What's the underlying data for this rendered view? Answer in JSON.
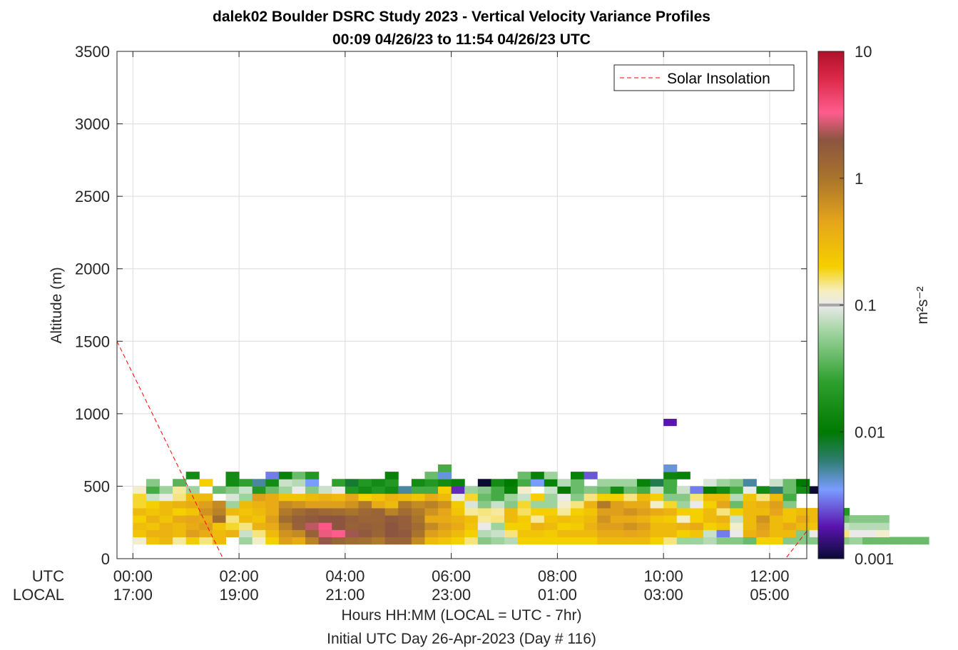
{
  "chart_data": {
    "type": "heatmap",
    "title": "dalek02 Boulder DSRC Study 2023 - Vertical Velocity Variance Profiles",
    "subtitle": "00:09 04/26/23 to 11:54 04/26/23  UTC",
    "ylabel": "Altitude (m)",
    "xlabel": "Hours HH:MM  (LOCAL = UTC - 7hr)",
    "footer": "Initial UTC Day 26-Apr-2023 (Day # 116)",
    "row_labels": [
      "UTC",
      "LOCAL"
    ],
    "xlim": [
      -0.3,
      12.7
    ],
    "ylim": [
      0,
      3500
    ],
    "grid": true,
    "x_ticks": [
      {
        "value": 0,
        "utc": "00:00",
        "local": "17:00"
      },
      {
        "value": 2,
        "utc": "02:00",
        "local": "19:00"
      },
      {
        "value": 4,
        "utc": "04:00",
        "local": "21:00"
      },
      {
        "value": 6,
        "utc": "06:00",
        "local": "23:00"
      },
      {
        "value": 8,
        "utc": "08:00",
        "local": "01:00"
      },
      {
        "value": 10,
        "utc": "10:00",
        "local": "03:00"
      },
      {
        "value": 12,
        "utc": "12:00",
        "local": "05:00"
      }
    ],
    "y_ticks": [
      0,
      500,
      1000,
      1500,
      2000,
      2500,
      3000,
      3500
    ],
    "colorbar": {
      "label": "m²s⁻²",
      "scale": "log",
      "range": [
        0.001,
        10
      ],
      "ticks": [
        {
          "value": 0.001,
          "label": "0.001"
        },
        {
          "value": 0.01,
          "label": "0.01"
        },
        {
          "value": 0.1,
          "label": "0.1"
        },
        {
          "value": 1,
          "label": "1"
        },
        {
          "value": 10,
          "label": "10"
        }
      ],
      "stops": [
        {
          "v": 0.001,
          "color": "#0a0a35"
        },
        {
          "v": 0.0018,
          "color": "#5a14b0"
        },
        {
          "v": 0.0035,
          "color": "#7a9cff"
        },
        {
          "v": 0.006,
          "color": "#2e7d6e"
        },
        {
          "v": 0.01,
          "color": "#007a00"
        },
        {
          "v": 0.025,
          "color": "#2ea02e"
        },
        {
          "v": 0.06,
          "color": "#9ed39e"
        },
        {
          "v": 0.1,
          "color": "#eaeaea"
        },
        {
          "v": 0.13,
          "color": "#f6eebc"
        },
        {
          "v": 0.2,
          "color": "#f5d000"
        },
        {
          "v": 0.45,
          "color": "#e6a51a"
        },
        {
          "v": 1.0,
          "color": "#a8742c"
        },
        {
          "v": 2.0,
          "color": "#8b5540"
        },
        {
          "v": 3.3,
          "color": "#ff5c8e"
        },
        {
          "v": 6.0,
          "color": "#dd2a4a"
        },
        {
          "v": 10,
          "color": "#b0102a"
        }
      ],
      "marker_value": 0.1,
      "marker_color": "#a6a6a6"
    },
    "series": [
      {
        "name": "Solar Insolation",
        "color": "#ff0000",
        "style": "dashed",
        "x": [
          -0.3,
          1.7,
          12.3,
          12.7
        ],
        "y": [
          1500,
          0,
          0,
          190
        ]
      }
    ],
    "legend": {
      "position": "top-right"
    },
    "heatmap": {
      "x_start": 0.0,
      "dx": 0.25,
      "y_start": 100,
      "dy": 50,
      "value_unit": "m²s⁻²",
      "null_value": null,
      "rows": [
        [
          0.12,
          0.25,
          0.32,
          0.14,
          0.22,
          0.15,
          0.3,
          null,
          0.06,
          0.12,
          0.2,
          0.5,
          0.4,
          0.8,
          2.1,
          1.4,
          1.2,
          1.1,
          0.9,
          1.4,
          1.4,
          0.7,
          0.3,
          0.25,
          0.2,
          0.15,
          0.05,
          0.06,
          0.07,
          0.2,
          0.2,
          0.2,
          0.2,
          0.2,
          0.2,
          0.3,
          0.3,
          0.3,
          0.3,
          0.2,
          0.15,
          0.06,
          0.06,
          0.07,
          0.05,
          0.05,
          0.04,
          0.2,
          0.2,
          0.05,
          0.05,
          0.05,
          0.05,
          0.05,
          0.06,
          0.04,
          0.04,
          0.04,
          0.04,
          0.04,
          null
        ],
        [
          0.25,
          0.35,
          0.35,
          0.3,
          0.5,
          0.4,
          0.3,
          0.35,
          0.08,
          0.15,
          0.3,
          0.6,
          0.7,
          1.5,
          3.0,
          3.3,
          2.2,
          1.8,
          1.4,
          2.0,
          1.8,
          1.0,
          0.5,
          0.4,
          0.3,
          0.2,
          0.07,
          0.08,
          0.15,
          0.25,
          0.25,
          0.22,
          0.3,
          0.3,
          0.3,
          0.4,
          0.4,
          0.45,
          0.4,
          0.3,
          0.3,
          0.2,
          0.25,
          0.08,
          0.003,
          0.1,
          0.35,
          0.45,
          0.3,
          0.3,
          0.05,
          0.1,
          0.14,
          0.15,
          0.1,
          0.1,
          0.12,
          null
        ],
        [
          0.28,
          0.25,
          0.35,
          0.3,
          0.4,
          0.5,
          0.25,
          0.18,
          0.15,
          0.35,
          0.4,
          0.8,
          1.5,
          2.5,
          3.5,
          2.0,
          1.5,
          1.6,
          1.5,
          2.0,
          1.6,
          1.2,
          0.7,
          0.5,
          0.4,
          0.25,
          0.1,
          0.06,
          0.2,
          0.2,
          0.35,
          0.3,
          0.2,
          0.22,
          0.35,
          0.5,
          0.5,
          0.6,
          0.5,
          0.3,
          0.3,
          0.35,
          0.4,
          0.2,
          0.25,
          0.12,
          0.3,
          0.5,
          0.3,
          0.4,
          0.3,
          0.25,
          0.06,
          0.08,
          0.07,
          0.07,
          0.07,
          null
        ],
        [
          0.2,
          0.35,
          0.25,
          0.4,
          0.45,
          0.4,
          1.2,
          0.15,
          0.3,
          0.25,
          0.5,
          1.2,
          1.6,
          1.8,
          2.0,
          2.0,
          1.6,
          1.4,
          1.4,
          1.8,
          1.6,
          1.0,
          0.4,
          0.4,
          0.35,
          0.28,
          0.14,
          0.15,
          0.3,
          0.22,
          0.14,
          0.25,
          0.28,
          0.25,
          0.3,
          0.6,
          0.4,
          0.4,
          0.35,
          0.25,
          0.22,
          0.12,
          0.2,
          0.3,
          0.35,
          0.08,
          0.3,
          0.6,
          0.3,
          0.25,
          0.4,
          0.3,
          0.07,
          0.04,
          0.05,
          0.05,
          0.05,
          null
        ],
        [
          0.3,
          0.25,
          0.3,
          0.2,
          0.25,
          0.6,
          0.8,
          0.3,
          0.25,
          0.3,
          0.4,
          0.9,
          1.2,
          1.5,
          1.3,
          1.2,
          1.0,
          1.3,
          1.4,
          0.8,
          1.2,
          0.9,
          0.6,
          0.45,
          0.25,
          0.14,
          0.15,
          0.14,
          0.3,
          0.16,
          0.2,
          0.2,
          0.14,
          0.2,
          0.25,
          0.5,
          0.5,
          0.6,
          0.5,
          0.4,
          0.35,
          0.2,
          0.2,
          0.3,
          0.15,
          0.2,
          0.3,
          0.3,
          0.45,
          0.25,
          0.3,
          0.3,
          0.04,
          0.02,
          null,
          null,
          null,
          null
        ],
        [
          0.18,
          0.2,
          0.3,
          0.35,
          0.4,
          0.5,
          0.7,
          0.06,
          0.3,
          0.35,
          0.4,
          0.7,
          0.6,
          0.5,
          0.5,
          0.5,
          0.6,
          0.9,
          0.4,
          0.3,
          0.9,
          0.7,
          0.8,
          0.6,
          0.22,
          0.09,
          0.05,
          0.08,
          0.05,
          0.18,
          0.06,
          0.06,
          0.12,
          0.15,
          0.35,
          0.9,
          0.5,
          0.4,
          0.4,
          0.12,
          0.18,
          0.06,
          0.1,
          0.2,
          0.45,
          0.04,
          0.3,
          0.35,
          0.5,
          0.05,
          null,
          null,
          null,
          null,
          null,
          null,
          null,
          null
        ],
        [
          0.18,
          0.08,
          0.1,
          0.15,
          0.3,
          0.3,
          null,
          0.09,
          0.06,
          0.5,
          0.4,
          0.25,
          0.25,
          0.3,
          0.35,
          0.3,
          0.45,
          0.2,
          0.25,
          0.35,
          0.3,
          0.25,
          0.4,
          0.3,
          0.1,
          0.18,
          0.04,
          0.03,
          0.06,
          0.08,
          0.2,
          0.06,
          0.1,
          0.05,
          0.15,
          0.2,
          0.2,
          0.15,
          0.3,
          0.2,
          0.05,
          0.05,
          0.15,
          0.3,
          0.3,
          0.07,
          0.25,
          0.15,
          0.3,
          0.03,
          null,
          null,
          null,
          null,
          null,
          null,
          null,
          null
        ],
        [
          0.12,
          0.03,
          0.06,
          0.14,
          0.06,
          null,
          0.04,
          0.05,
          0.08,
          0.02,
          0.04,
          0.06,
          0.1,
          0.05,
          0.08,
          0.1,
          0.02,
          0.015,
          0.02,
          0.015,
          0.005,
          0.03,
          0.03,
          0.2,
          0.002,
          0.06,
          0.05,
          0.03,
          0.012,
          0.12,
          null,
          0.08,
          0.01,
          0.04,
          0.05,
          0.04,
          0.015,
          0.04,
          0.03,
          0.08,
          0.03,
          0.08,
          0.003,
          0.01,
          0.015,
          0.03,
          0.1,
          0.015,
          0.006,
          0.04,
          0.015,
          0.001,
          null,
          null,
          null,
          null,
          null,
          null
        ],
        [
          null,
          0.05,
          null,
          0.035,
          null,
          0.2,
          null,
          0.015,
          0.025,
          0.005,
          0.015,
          0.08,
          0.07,
          0.0035,
          null,
          0.025,
          0.008,
          0.02,
          0.015,
          0.02,
          null,
          0.015,
          0.02,
          0.015,
          0.012,
          null,
          0.001,
          0.015,
          0.01,
          0.03,
          0.0035,
          0.012,
          0.07,
          0.04,
          null,
          0.06,
          0.06,
          0.06,
          0.012,
          0.007,
          0.03,
          null,
          null,
          0.09,
          0.06,
          0.05,
          0.005,
          null,
          0.08,
          0.04,
          0.01,
          null,
          null,
          null,
          null,
          null,
          null,
          null
        ],
        [
          null,
          null,
          null,
          null,
          0.015,
          null,
          null,
          0.015,
          null,
          null,
          0.003,
          0.012,
          0.04,
          0.02,
          null,
          null,
          null,
          null,
          null,
          0.012,
          null,
          null,
          0.04,
          0.004,
          null,
          null,
          null,
          null,
          null,
          0.04,
          0.012,
          0.06,
          null,
          0.012,
          0.0025,
          null,
          null,
          null,
          null,
          null,
          0.013,
          0.012,
          null,
          null,
          null,
          null,
          null,
          null,
          null,
          null,
          null,
          null,
          null,
          null,
          null,
          null,
          null,
          null
        ],
        [
          null,
          null,
          null,
          null,
          null,
          null,
          null,
          null,
          null,
          null,
          null,
          null,
          null,
          null,
          null,
          null,
          null,
          null,
          null,
          null,
          null,
          null,
          null,
          0.03,
          null,
          null,
          null,
          null,
          null,
          null,
          null,
          null,
          null,
          null,
          null,
          null,
          null,
          null,
          null,
          null,
          0.004,
          null,
          null,
          null,
          null,
          null,
          null,
          null,
          null,
          null,
          null,
          null,
          null,
          null,
          null,
          null,
          null,
          null
        ]
      ],
      "extra_cells": [
        {
          "x": 10.0,
          "y": 940,
          "value": 0.0018
        }
      ]
    }
  }
}
